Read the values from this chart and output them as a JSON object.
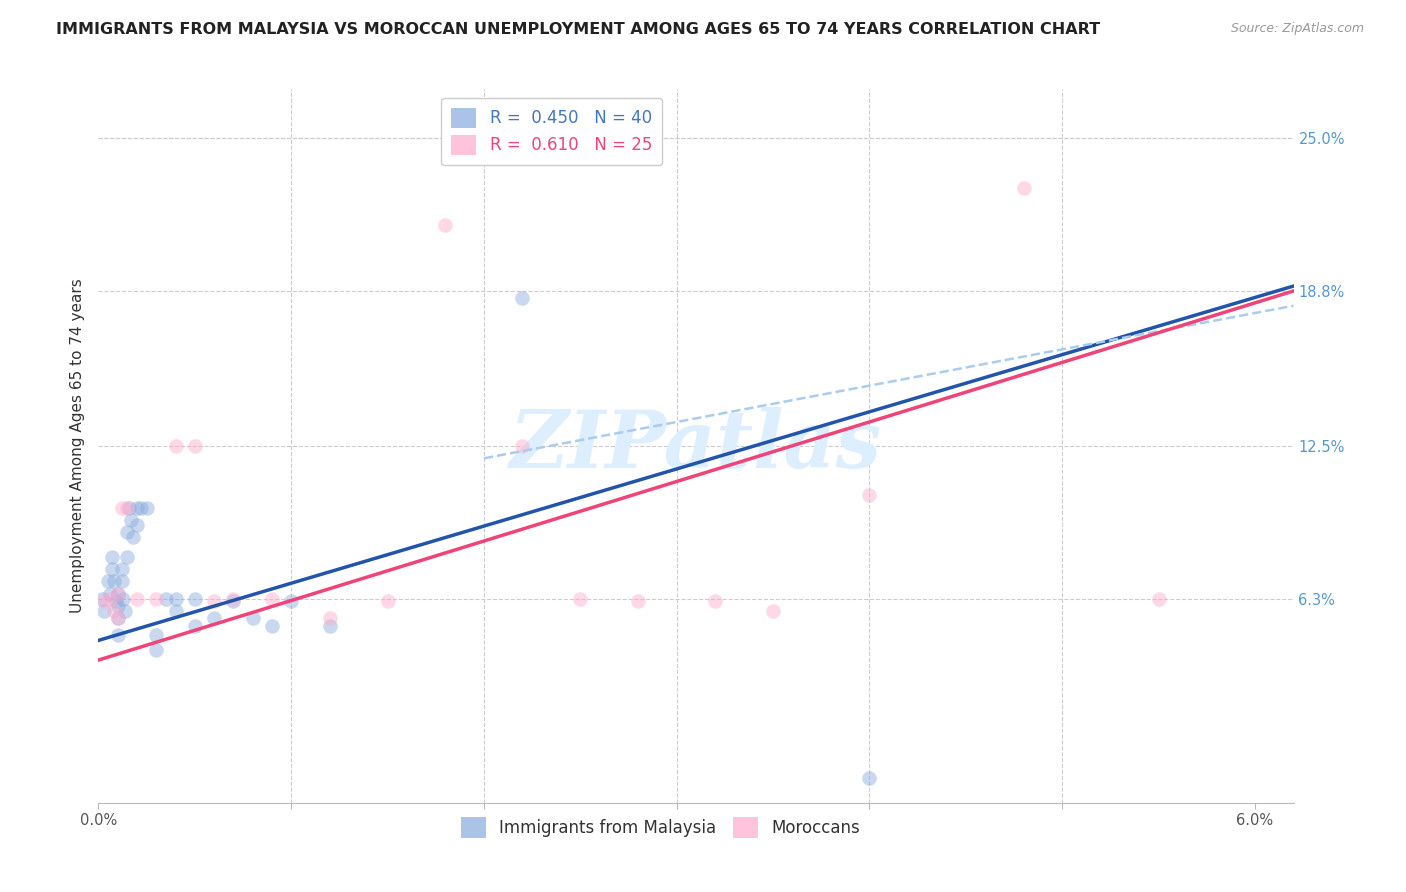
{
  "title": "IMMIGRANTS FROM MALAYSIA VS MOROCCAN UNEMPLOYMENT AMONG AGES 65 TO 74 YEARS CORRELATION CHART",
  "source": "Source: ZipAtlas.com",
  "ylabel": "Unemployment Among Ages 65 to 74 years",
  "xlim": [
    0.0,
    0.062
  ],
  "ylim": [
    -0.02,
    0.27
  ],
  "xticks": [
    0.0,
    0.01,
    0.02,
    0.03,
    0.04,
    0.05,
    0.06
  ],
  "xticklabels": [
    "0.0%",
    "",
    "",
    "",
    "",
    "",
    "6.0%"
  ],
  "ytick_right_labels": [
    "25.0%",
    "18.8%",
    "12.5%",
    "6.3%"
  ],
  "ytick_right_values": [
    0.25,
    0.188,
    0.125,
    0.063
  ],
  "blue_color": "#88AADD",
  "pink_color": "#FFAACC",
  "blue_line_color": "#2255AA",
  "pink_line_color": "#EE4477",
  "dashed_line_color": "#AACCEE",
  "watermark_color": "#DDEEFF",
  "legend_blue_R": "0.450",
  "legend_blue_N": "40",
  "legend_pink_R": "0.610",
  "legend_pink_N": "25",
  "blue_scatter_x": [
    0.0002,
    0.0003,
    0.0005,
    0.0006,
    0.0007,
    0.0007,
    0.0008,
    0.0009,
    0.001,
    0.001,
    0.001,
    0.001,
    0.0012,
    0.0012,
    0.0013,
    0.0014,
    0.0015,
    0.0015,
    0.0016,
    0.0017,
    0.0018,
    0.002,
    0.002,
    0.0022,
    0.0025,
    0.003,
    0.003,
    0.0035,
    0.004,
    0.004,
    0.005,
    0.005,
    0.006,
    0.007,
    0.008,
    0.009,
    0.01,
    0.012,
    0.022,
    0.04
  ],
  "blue_scatter_y": [
    0.063,
    0.058,
    0.07,
    0.065,
    0.08,
    0.075,
    0.07,
    0.062,
    0.065,
    0.06,
    0.055,
    0.048,
    0.075,
    0.07,
    0.063,
    0.058,
    0.09,
    0.08,
    0.1,
    0.095,
    0.088,
    0.1,
    0.093,
    0.1,
    0.1,
    0.048,
    0.042,
    0.063,
    0.063,
    0.058,
    0.063,
    0.052,
    0.055,
    0.062,
    0.055,
    0.052,
    0.062,
    0.052,
    0.185,
    -0.01
  ],
  "pink_scatter_x": [
    0.0003,
    0.0006,
    0.0008,
    0.001,
    0.001,
    0.0012,
    0.0015,
    0.002,
    0.003,
    0.004,
    0.005,
    0.006,
    0.007,
    0.009,
    0.012,
    0.015,
    0.018,
    0.022,
    0.025,
    0.028,
    0.032,
    0.035,
    0.04,
    0.048,
    0.055
  ],
  "pink_scatter_y": [
    0.062,
    0.063,
    0.058,
    0.065,
    0.055,
    0.1,
    0.1,
    0.063,
    0.063,
    0.125,
    0.125,
    0.062,
    0.063,
    0.063,
    0.055,
    0.062,
    0.215,
    0.125,
    0.063,
    0.062,
    0.062,
    0.058,
    0.105,
    0.23,
    0.063
  ],
  "blue_trend_x": [
    0.0,
    0.062
  ],
  "blue_trend_y": [
    0.046,
    0.19
  ],
  "pink_trend_x": [
    0.0,
    0.062
  ],
  "pink_trend_y": [
    0.038,
    0.188
  ],
  "dashed_trend_x": [
    0.02,
    0.062
  ],
  "dashed_trend_y": [
    0.12,
    0.182
  ],
  "marker_size": 110,
  "marker_alpha": 0.45,
  "background_color": "#FFFFFF",
  "plot_area_color": "#FFFFFF",
  "grid_color": "#CCCCCC",
  "title_fontsize": 11.5,
  "axis_label_fontsize": 11,
  "tick_fontsize": 10.5,
  "legend_fontsize": 12
}
